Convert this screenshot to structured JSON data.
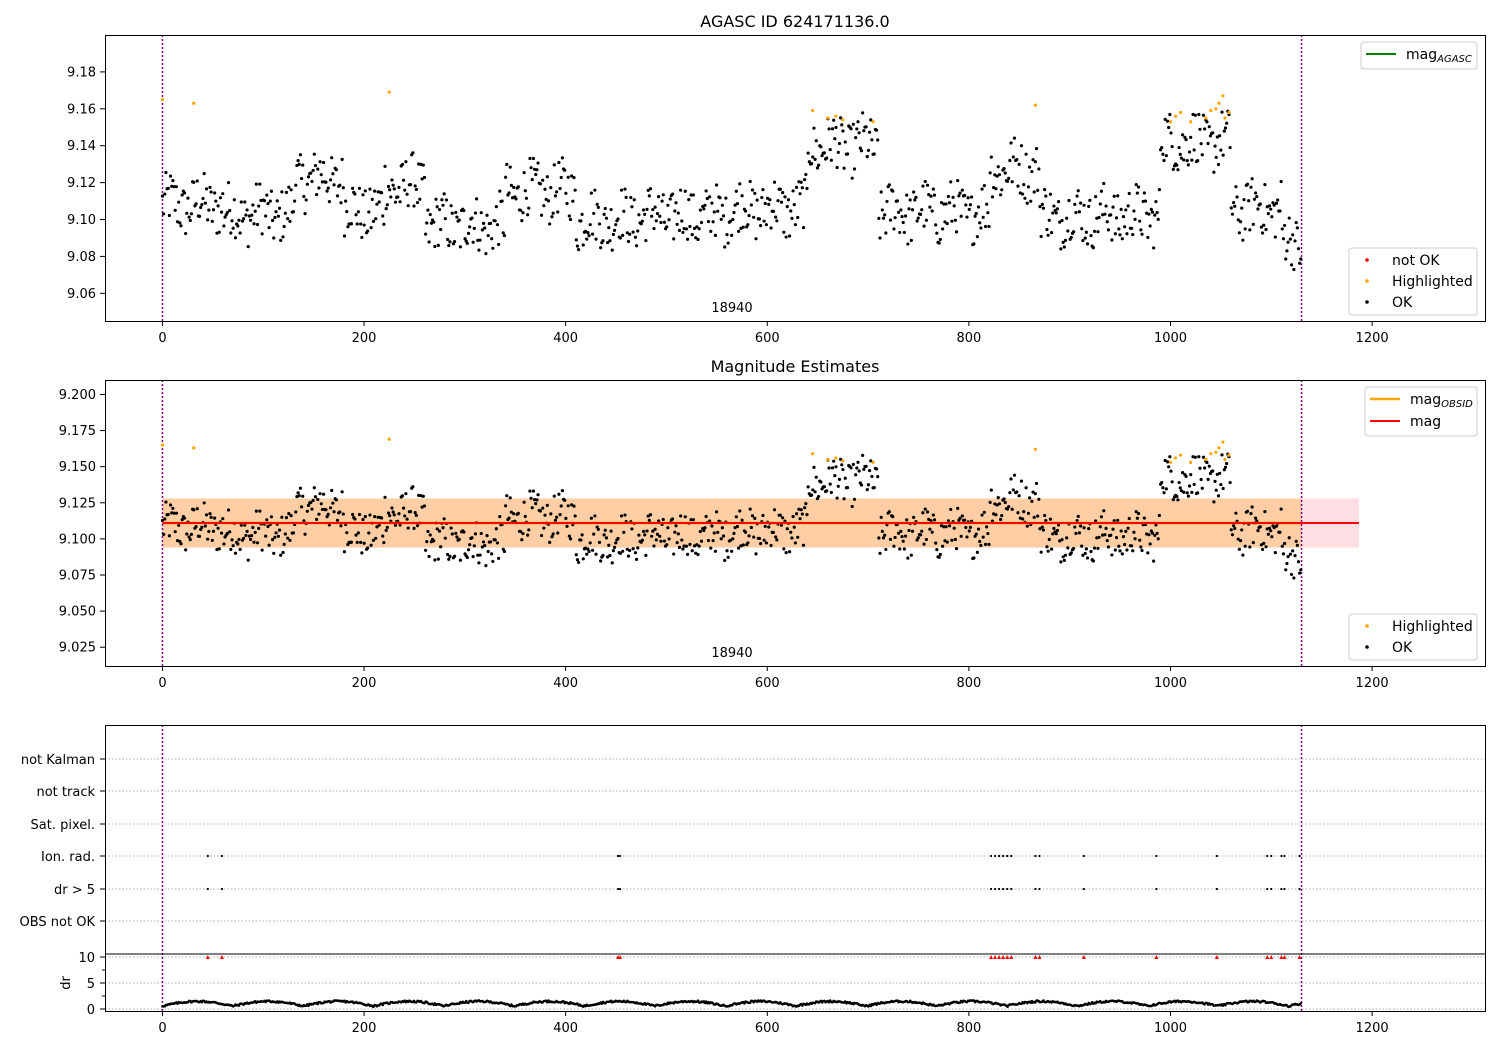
{
  "chart_data": [
    {
      "type": "scatter",
      "title": "AGASC ID 624171136.0",
      "xlim": [
        -57,
        1312
      ],
      "ylim": [
        9.045,
        9.2
      ],
      "xticks": [
        0,
        200,
        400,
        600,
        800,
        1000,
        1200
      ],
      "yticks": [
        "9.06",
        "9.08",
        "9.10",
        "9.12",
        "9.14",
        "9.16",
        "9.18"
      ],
      "annotation": "18940",
      "vlines": [
        0,
        1130
      ],
      "series": [
        {
          "name": "not OK",
          "color": "#ff0000",
          "points": []
        },
        {
          "name": "Highlighted",
          "color": "#ffa500",
          "points": [
            [
              0,
              9.165
            ],
            [
              31,
              9.163
            ],
            [
              225,
              9.169
            ],
            [
              645,
              9.159
            ],
            [
              660,
              9.155
            ],
            [
              668,
              9.156
            ],
            [
              675,
              9.154
            ],
            [
              705,
              9.153
            ],
            [
              866,
              9.162
            ],
            [
              1000,
              9.153
            ],
            [
              1005,
              9.156
            ],
            [
              1010,
              9.158
            ],
            [
              1020,
              9.153
            ],
            [
              1035,
              9.155
            ],
            [
              1040,
              9.159
            ],
            [
              1045,
              9.16
            ],
            [
              1048,
              9.163
            ],
            [
              1052,
              9.167
            ],
            [
              1054,
              9.155
            ],
            [
              1058,
              9.158
            ]
          ]
        },
        {
          "name": "OK",
          "color": "#000000",
          "points": []
        }
      ],
      "lines": [
        {
          "name": "mag_AGASC",
          "color": "#008000"
        }
      ],
      "legends": [
        "top-right",
        "bottom-right"
      ]
    },
    {
      "type": "scatter",
      "title": "Magnitude Estimates",
      "xlim": [
        -57,
        1312
      ],
      "ylim": [
        9.012,
        9.21
      ],
      "xticks": [
        0,
        200,
        400,
        600,
        800,
        1000,
        1200
      ],
      "yticks": [
        "9.025",
        "9.050",
        "9.075",
        "9.100",
        "9.125",
        "9.150",
        "9.175",
        "9.200"
      ],
      "annotation": "18940",
      "vlines": [
        0,
        1130
      ],
      "mag": 9.111,
      "mag_band": [
        9.094,
        9.128
      ],
      "mag_obsid": 9.111,
      "mag_obsid_band": [
        9.094,
        9.128
      ],
      "series": [
        {
          "name": "Highlighted",
          "color": "#ffa500"
        },
        {
          "name": "OK",
          "color": "#000000"
        }
      ],
      "lines": [
        {
          "name": "mag_OBSID",
          "color": "#ffa500"
        },
        {
          "name": "mag",
          "color": "#ff0000"
        }
      ],
      "legends": [
        "top-right",
        "bottom-right"
      ]
    },
    {
      "type": "scatter",
      "xlim": [
        -57,
        1312
      ],
      "xticks": [
        0,
        200,
        400,
        600,
        800,
        1000,
        1200
      ],
      "flag_rows": [
        "not Kalman",
        "not track",
        "Sat. pixel.",
        "Ion. rad.",
        "dr > 5",
        "OBS not OK"
      ],
      "flag_events": {
        "Ion. rad.": [
          45,
          59,
          452,
          454,
          822,
          826,
          830,
          834,
          838,
          842,
          866,
          870,
          914,
          986,
          1046,
          1096,
          1100,
          1110,
          1113,
          1128
        ],
        "dr > 5": [
          45,
          59,
          452,
          454,
          822,
          826,
          830,
          834,
          838,
          842,
          866,
          870,
          914,
          986,
          1046,
          1096,
          1100,
          1110,
          1113,
          1128
        ]
      },
      "dr_ylabel": "dr",
      "dr_yticks": [
        "0",
        "5",
        "10"
      ],
      "dr_clip": 10
    }
  ],
  "colors": {
    "ok": "#000000",
    "highlighted": "#ffa500",
    "not_ok": "#ff0000",
    "agasc_line": "#008000",
    "mag_line": "#ff0000",
    "obsid_line": "#ffa500",
    "vline": "#800080"
  }
}
